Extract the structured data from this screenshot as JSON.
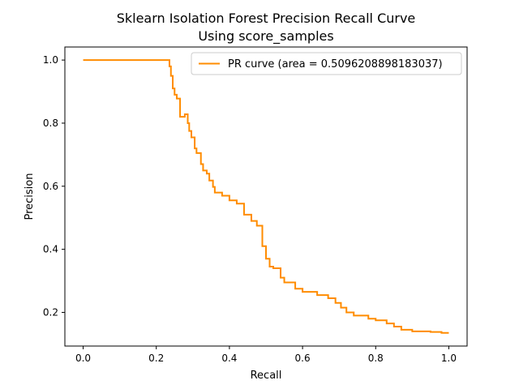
{
  "chart_data": {
    "type": "line",
    "title": "Sklearn Isolation Forest Precision Recall Curve",
    "subtitle": "Using score_samples",
    "xlabel": "Recall",
    "ylabel": "Precision",
    "xlim": [
      -0.05,
      1.05
    ],
    "ylim": [
      0.0933,
      1.0414
    ],
    "xticks": [
      0.0,
      0.2,
      0.4,
      0.6,
      0.8,
      1.0
    ],
    "xtick_labels": [
      "0.0",
      "0.2",
      "0.4",
      "0.6",
      "0.8",
      "1.0"
    ],
    "yticks": [
      0.2,
      0.4,
      0.6,
      0.8,
      1.0
    ],
    "ytick_labels": [
      "0.2",
      "0.4",
      "0.6",
      "0.8",
      "1.0"
    ],
    "grid": false,
    "legend_position": "top-right",
    "series": [
      {
        "name": "PR curve (area = 0.5096208898183037)",
        "color": "#ff8c00",
        "x": [
          0.0,
          0.236,
          0.236,
          0.24,
          0.24,
          0.245,
          0.245,
          0.25,
          0.25,
          0.256,
          0.256,
          0.265,
          0.265,
          0.278,
          0.278,
          0.286,
          0.286,
          0.29,
          0.29,
          0.296,
          0.296,
          0.305,
          0.305,
          0.31,
          0.31,
          0.322,
          0.322,
          0.328,
          0.328,
          0.338,
          0.338,
          0.345,
          0.345,
          0.355,
          0.355,
          0.36,
          0.36,
          0.38,
          0.38,
          0.4,
          0.4,
          0.42,
          0.42,
          0.44,
          0.44,
          0.46,
          0.46,
          0.475,
          0.475,
          0.49,
          0.49,
          0.5,
          0.5,
          0.51,
          0.51,
          0.52,
          0.52,
          0.54,
          0.54,
          0.55,
          0.55,
          0.58,
          0.58,
          0.6,
          0.6,
          0.64,
          0.64,
          0.67,
          0.67,
          0.69,
          0.69,
          0.705,
          0.705,
          0.72,
          0.72,
          0.74,
          0.74,
          0.78,
          0.78,
          0.8,
          0.8,
          0.83,
          0.83,
          0.85,
          0.85,
          0.87,
          0.87,
          0.9,
          0.9,
          0.95,
          0.95,
          0.98,
          0.98,
          1.0
        ],
        "y": [
          1.0,
          1.0,
          0.98,
          0.98,
          0.95,
          0.95,
          0.91,
          0.91,
          0.89,
          0.89,
          0.878,
          0.878,
          0.82,
          0.82,
          0.828,
          0.828,
          0.8,
          0.8,
          0.775,
          0.775,
          0.755,
          0.755,
          0.72,
          0.72,
          0.705,
          0.705,
          0.67,
          0.67,
          0.65,
          0.65,
          0.64,
          0.64,
          0.618,
          0.618,
          0.598,
          0.598,
          0.58,
          0.58,
          0.57,
          0.57,
          0.555,
          0.555,
          0.545,
          0.545,
          0.51,
          0.51,
          0.49,
          0.49,
          0.475,
          0.475,
          0.41,
          0.41,
          0.37,
          0.37,
          0.345,
          0.345,
          0.34,
          0.34,
          0.31,
          0.31,
          0.295,
          0.295,
          0.275,
          0.275,
          0.265,
          0.265,
          0.255,
          0.255,
          0.245,
          0.245,
          0.23,
          0.23,
          0.215,
          0.215,
          0.2,
          0.2,
          0.19,
          0.19,
          0.18,
          0.18,
          0.175,
          0.175,
          0.165,
          0.165,
          0.155,
          0.155,
          0.145,
          0.145,
          0.14,
          0.14,
          0.138,
          0.138,
          0.135,
          0.135
        ]
      }
    ]
  }
}
